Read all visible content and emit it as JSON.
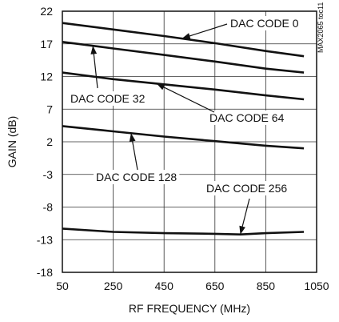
{
  "chart_data": {
    "type": "line",
    "title": "",
    "xlabel": "RF FREQUENCY (MHz)",
    "ylabel": "GAIN (dB)",
    "xlim": [
      50,
      1050
    ],
    "ylim": [
      -18,
      22
    ],
    "xticks": [
      50,
      250,
      450,
      650,
      850,
      1050
    ],
    "yticks": [
      22,
      17,
      12,
      7,
      2,
      -3,
      -8,
      -13,
      -18
    ],
    "grid": true,
    "watermark": "MAX2065 toc11",
    "series": [
      {
        "name": "DAC CODE 0",
        "x": [
          50,
          250,
          450,
          650,
          850,
          1000
        ],
        "y": [
          20.2,
          19.2,
          18.2,
          17.1,
          15.9,
          15.1
        ]
      },
      {
        "name": "DAC CODE 32",
        "x": [
          50,
          250,
          450,
          650,
          850,
          1000
        ],
        "y": [
          17.3,
          16.3,
          15.3,
          14.3,
          13.2,
          12.6
        ]
      },
      {
        "name": "DAC CODE 64",
        "x": [
          50,
          250,
          450,
          650,
          850,
          1000
        ],
        "y": [
          12.6,
          11.6,
          10.8,
          10.0,
          9.1,
          8.5
        ]
      },
      {
        "name": "DAC CODE 128",
        "x": [
          50,
          250,
          450,
          650,
          850,
          1000
        ],
        "y": [
          4.4,
          3.6,
          2.8,
          2.1,
          1.4,
          1.0
        ]
      },
      {
        "name": "DAC CODE 256",
        "x": [
          50,
          250,
          450,
          650,
          750,
          850,
          1000
        ],
        "y": [
          -11.3,
          -11.8,
          -12.0,
          -12.1,
          -12.2,
          -12.0,
          -11.8
        ]
      }
    ]
  }
}
